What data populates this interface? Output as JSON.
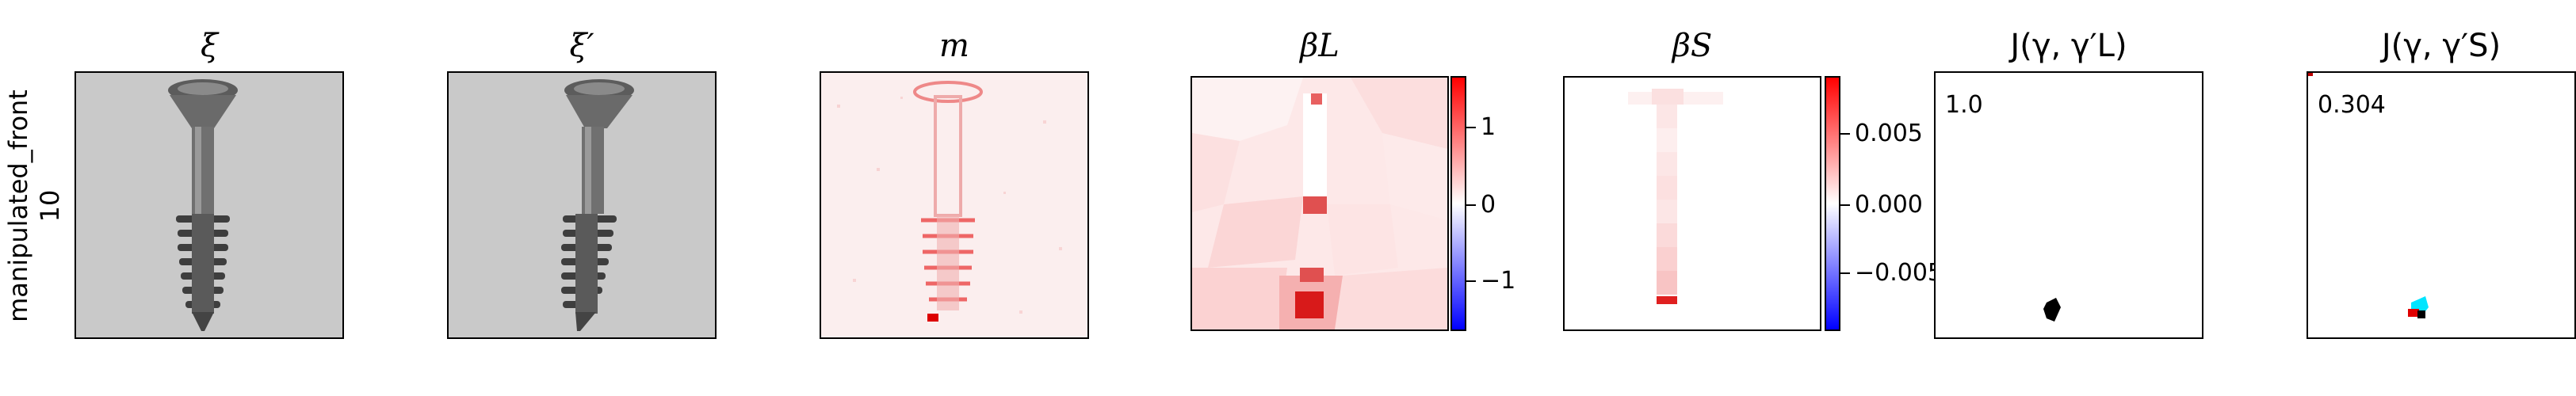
{
  "row_label": {
    "line1": "manipulated_front",
    "line2": "10"
  },
  "panels": [
    {
      "title": "ξ"
    },
    {
      "title": "ξ′"
    },
    {
      "title": "m"
    },
    {
      "title": "βL",
      "colorbar": {
        "ticks": [
          "1",
          "0",
          "−1"
        ],
        "colors": [
          "#0000ff",
          "#ffffff",
          "#ff0000"
        ]
      }
    },
    {
      "title": "βS",
      "colorbar": {
        "ticks": [
          "0.005",
          "0.000",
          "−0.005"
        ],
        "colors": [
          "#0000ff",
          "#ffffff",
          "#ff0000"
        ]
      }
    },
    {
      "title": "J(γ, γ′L)",
      "value": "1.0"
    },
    {
      "title": "J(γ, γ′S)",
      "value": "0.304"
    }
  ]
}
